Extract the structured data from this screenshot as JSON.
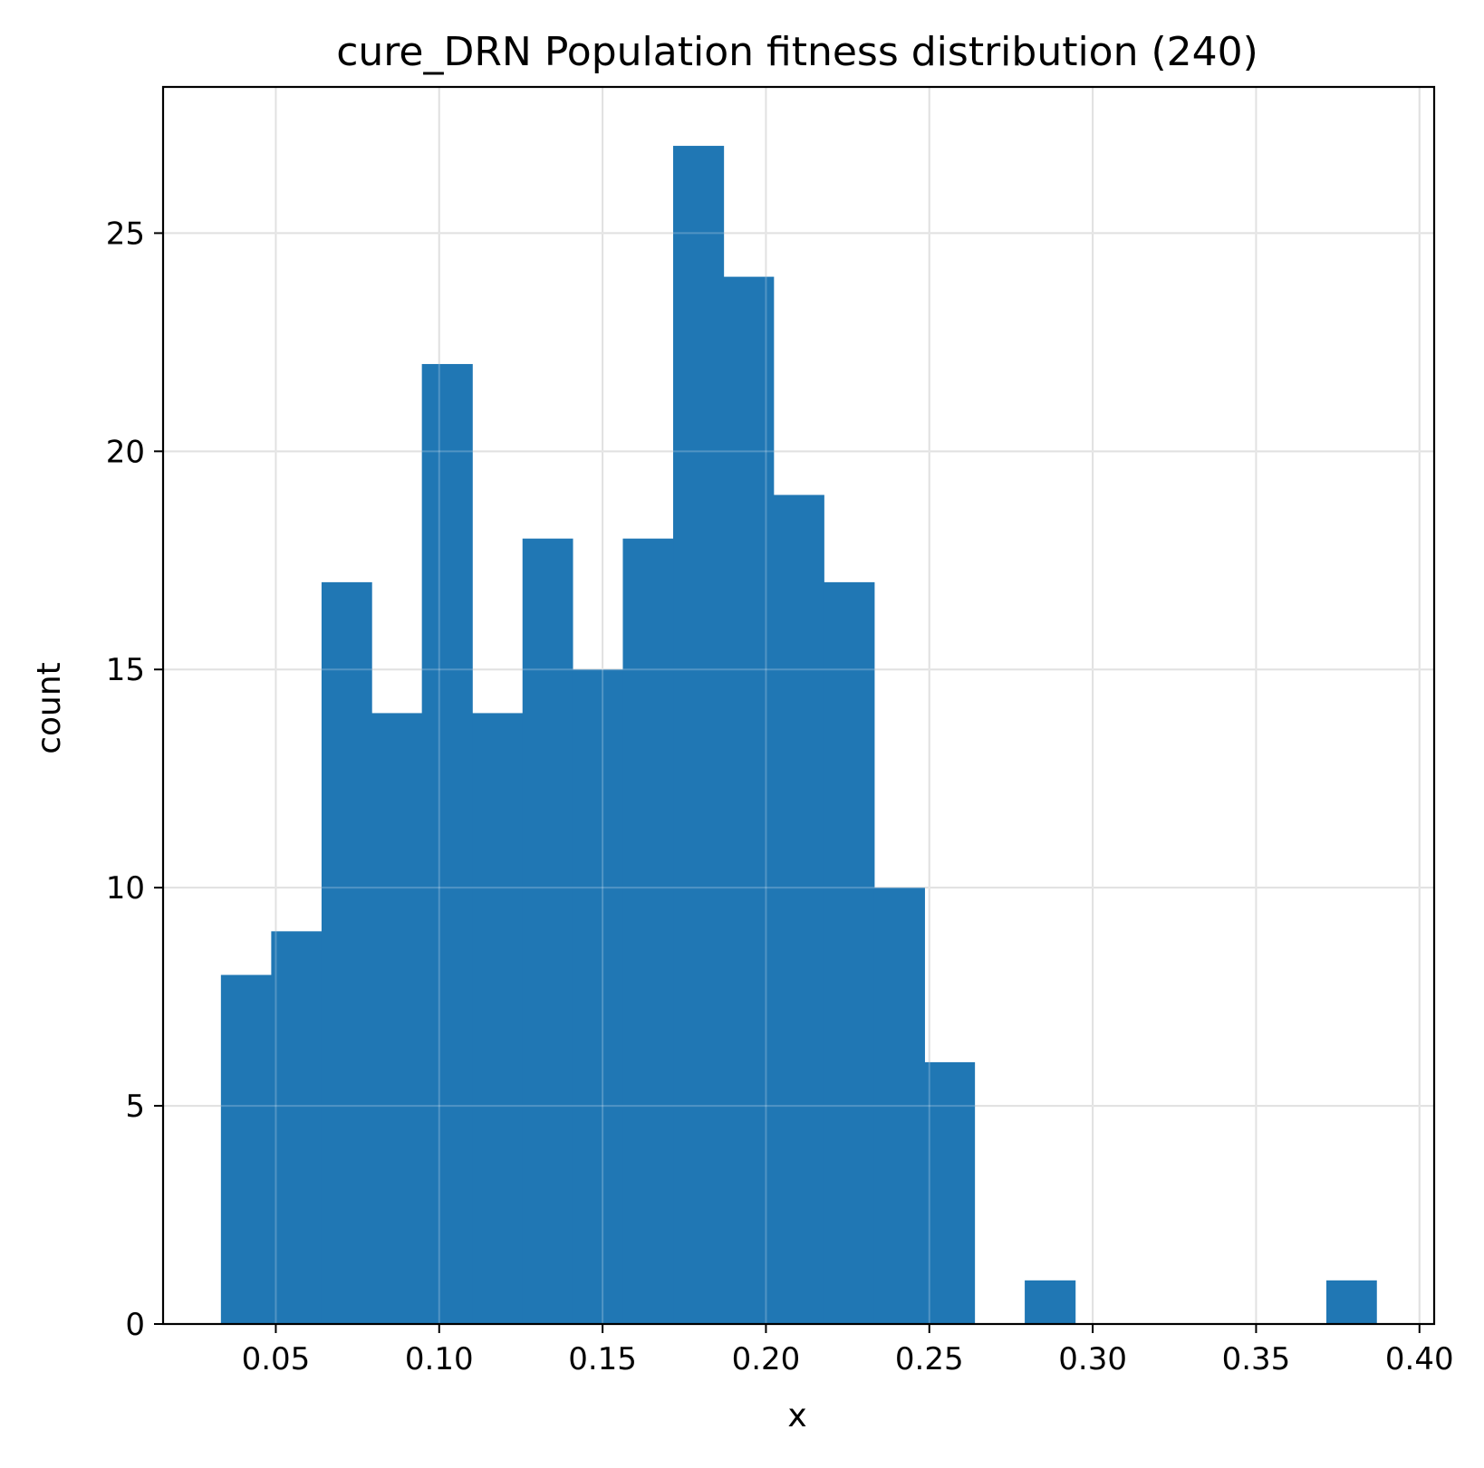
{
  "chart_data": {
    "type": "bar",
    "title": "cure_DRN Population fitness distribution (240)",
    "xlabel": "x",
    "ylabel": "count",
    "xlim": [
      0.0155,
      0.4045
    ],
    "ylim": [
      0,
      28.35
    ],
    "grid": true,
    "bar_color": "#2077b4",
    "x_ticks": [
      0.05,
      0.1,
      0.15,
      0.2,
      0.25,
      0.3,
      0.35,
      0.4
    ],
    "x_tick_labels": [
      "0.05",
      "0.10",
      "0.15",
      "0.20",
      "0.25",
      "0.30",
      "0.35",
      "0.40"
    ],
    "y_ticks": [
      0,
      5,
      10,
      15,
      20,
      25
    ],
    "y_tick_labels": [
      "0",
      "5",
      "10",
      "15",
      "20",
      "25"
    ],
    "bin_edges": [
      0.0332,
      0.0486,
      0.064,
      0.0793,
      0.0947,
      0.1101,
      0.1255,
      0.1408,
      0.1562,
      0.1716,
      0.187,
      0.2023,
      0.2177,
      0.2331,
      0.2485,
      0.2638,
      0.2792,
      0.2946,
      0.31,
      0.3253,
      0.3407,
      0.3561,
      0.3715,
      0.3868
    ],
    "values": [
      8,
      9,
      17,
      14,
      22,
      14,
      18,
      15,
      18,
      27,
      24,
      19,
      17,
      10,
      6,
      0,
      1,
      0,
      0,
      0,
      0,
      0,
      1
    ]
  }
}
